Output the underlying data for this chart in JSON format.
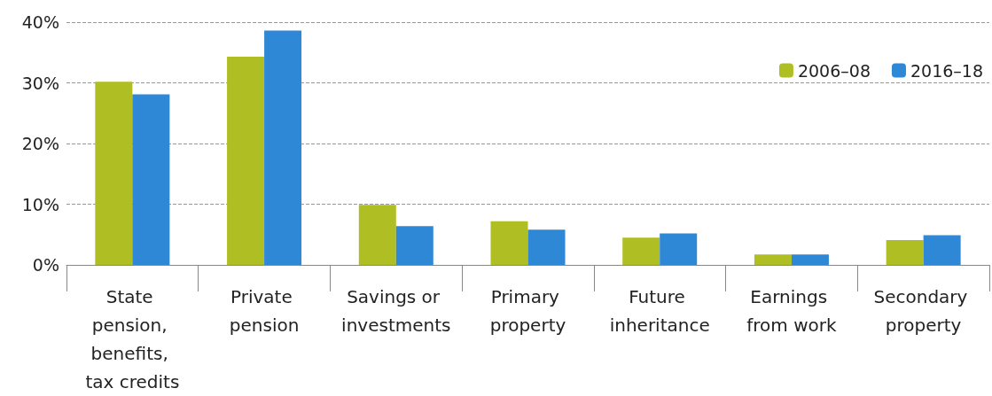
{
  "chart_data": {
    "type": "bar",
    "categories": [
      "State pension, benefits, tax credits",
      "Private pension",
      "Savings or investments",
      "Primary property",
      "Future inheritance",
      "Earnings from work",
      "Secondary property"
    ],
    "series": [
      {
        "name": "2006–08",
        "color": "#afbe22",
        "values": [
          30.2,
          34.3,
          9.9,
          7.2,
          4.5,
          1.7,
          4.1
        ]
      },
      {
        "name": "2016–18",
        "color": "#2e88d6",
        "values": [
          28.1,
          38.6,
          6.4,
          5.8,
          5.2,
          1.7,
          4.9
        ]
      }
    ],
    "ylim": [
      0,
      40
    ],
    "yticks": [
      {
        "value": 0,
        "label": "0%"
      },
      {
        "value": 10,
        "label": "10%"
      },
      {
        "value": 20,
        "label": "20%"
      },
      {
        "value": 30,
        "label": "30%"
      },
      {
        "value": 40,
        "label": "40%"
      }
    ],
    "grid": "y",
    "legend": "top right"
  }
}
